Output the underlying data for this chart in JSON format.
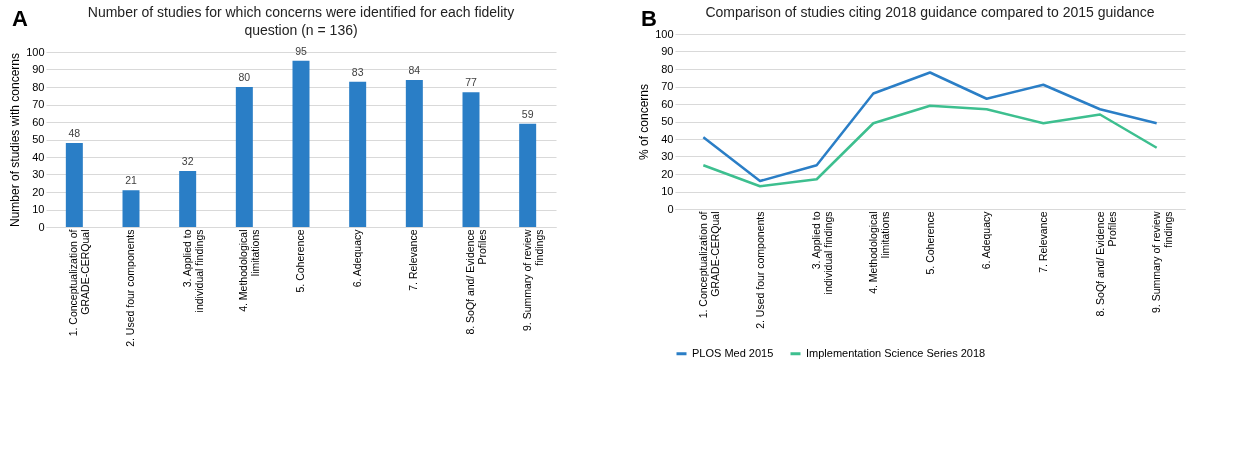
{
  "chart_data": [
    {
      "type": "bar",
      "title": "Number of studies for which concerns were identified for each fidelity question (n = 136)",
      "ylabel": "Number of studies with concerns",
      "annotations": [
        "A"
      ],
      "categories": [
        "1. Conceptualization of GRADE-CERQual",
        "2. Used four components",
        "3. Applied  to individual findings",
        "4. Methodological limitations",
        "5. Coherence",
        "6. Adequacy",
        "7.  Relevance",
        "8.  SoQf and/ Evidence Profiles",
        "9. Summary of review findings"
      ],
      "values": [
        48,
        21,
        32,
        80,
        95,
        83,
        84,
        77,
        59
      ],
      "color": "#2a7ec6",
      "data_labels": true,
      "ylim": [
        0,
        100
      ],
      "yticks": [
        0,
        10,
        20,
        30,
        40,
        50,
        60,
        70,
        80,
        90,
        100
      ],
      "grid": "y",
      "legend": false
    },
    {
      "type": "line",
      "title": "Comparison of studies citing 2018 guidance compared to 2015 guidance",
      "ylabel": "% of concerns",
      "annotations": [
        "B"
      ],
      "categories": [
        "1. Conceptualization of GRADE-CERQual",
        "2. Used four components",
        "3. Applied  to individual findings",
        "4. Methodological limitations",
        "5. Coherence",
        "6. Adequacy",
        "7.  Relevance",
        "8.  SoQf and/ Evidence Profiles",
        "9. Summary of review findings"
      ],
      "series": [
        {
          "name": "PLOS Med 2015",
          "color": "#2a7ec6",
          "values": [
            41,
            16,
            25,
            66,
            78,
            63,
            71,
            57,
            49
          ]
        },
        {
          "name": "Implementation Science Series 2018",
          "color": "#3dbf8f",
          "values": [
            25,
            13,
            17,
            49,
            59,
            57,
            49,
            54,
            35
          ]
        }
      ],
      "ylim": [
        0,
        100
      ],
      "yticks": [
        0,
        10,
        20,
        30,
        40,
        50,
        60,
        70,
        80,
        90,
        100
      ],
      "grid": "y",
      "legend": "bottom",
      "marker": "none",
      "line_style": "solid"
    }
  ]
}
